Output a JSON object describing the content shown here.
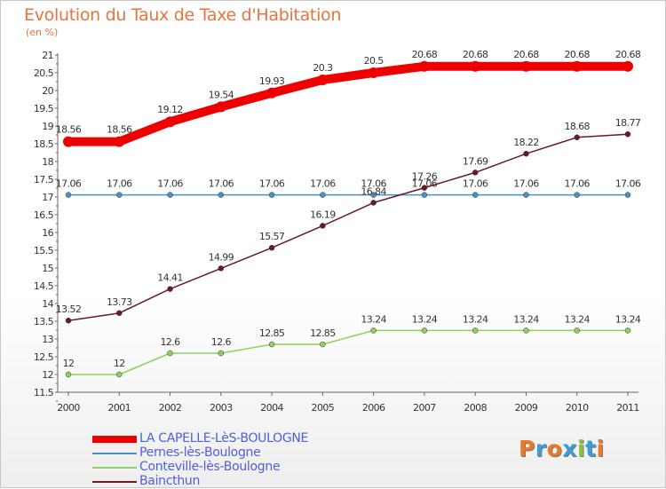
{
  "title": "Evolution du Taux de Taxe d'Habitation",
  "unit_label": "(en %)",
  "chart_data": {
    "type": "line",
    "title": "Evolution du Taux de Taxe d'Habitation",
    "ylabel": "(en %)",
    "xlabel": "",
    "x": [
      "2000",
      "2001",
      "2002",
      "2003",
      "2004",
      "2005",
      "2006",
      "2007",
      "2008",
      "2009",
      "2010",
      "2011"
    ],
    "ylim": [
      11.5,
      21
    ],
    "yticks": [
      "11.5",
      "12",
      "12.5",
      "13",
      "13.5",
      "14",
      "14.5",
      "15",
      "15.5",
      "16",
      "16.5",
      "17",
      "17.5",
      "18",
      "18.5",
      "19",
      "19.5",
      "20",
      "20.5",
      "21"
    ],
    "grid": false,
    "legend_position": "bottom-left",
    "series": [
      {
        "name": "LA CAPELLE-LèS-BOULOGNE",
        "color": "#ee0000",
        "thick": true,
        "values": [
          18.56,
          18.56,
          19.12,
          19.54,
          19.93,
          20.3,
          20.5,
          20.68,
          20.68,
          20.68,
          20.68,
          20.68
        ],
        "labels": [
          "18.56",
          "18.56",
          "19.12",
          "19.54",
          "19.93",
          "20.3",
          "20.5",
          "20.68",
          "20.68",
          "20.68",
          "20.68",
          "20.68"
        ]
      },
      {
        "name": "Pernes-lès-Boulogne",
        "color": "#4a90c8",
        "thick": false,
        "values": [
          17.06,
          17.06,
          17.06,
          17.06,
          17.06,
          17.06,
          17.06,
          17.06,
          17.06,
          17.06,
          17.06,
          17.06
        ],
        "labels": [
          "17.06",
          "17.06",
          "17.06",
          "17.06",
          "17.06",
          "17.06",
          "17.06",
          "17.06",
          "17.06",
          "17.06",
          "17.06",
          "17.06"
        ]
      },
      {
        "name": "Conteville-lès-Boulogne",
        "color": "#90d060",
        "thick": false,
        "values": [
          12,
          12,
          12.6,
          12.6,
          12.85,
          12.85,
          13.24,
          13.24,
          13.24,
          13.24,
          13.24,
          13.24
        ],
        "labels": [
          "12",
          "12",
          "12.6",
          "12.6",
          "12.85",
          "12.85",
          "13.24",
          "13.24",
          "13.24",
          "13.24",
          "13.24",
          "13.24"
        ]
      },
      {
        "name": "Baincthun",
        "color": "#6a1a22",
        "thick": false,
        "values": [
          13.52,
          13.73,
          14.41,
          14.99,
          15.57,
          16.19,
          16.84,
          17.26,
          17.69,
          18.22,
          18.68,
          18.77
        ],
        "labels": [
          "13.52",
          "13.73",
          "14.41",
          "14.99",
          "15.57",
          "16.19",
          "16.84",
          "17.26",
          "17.69",
          "18.22",
          "18.68",
          "18.77"
        ]
      }
    ]
  },
  "logo": {
    "text": "Proxiti",
    "colors": [
      "#e87a2a",
      "#3a9fd8",
      "#e87a2a",
      "#3a9fd8",
      "#90c040",
      "#3a9fd8",
      "#e87a2a"
    ]
  }
}
